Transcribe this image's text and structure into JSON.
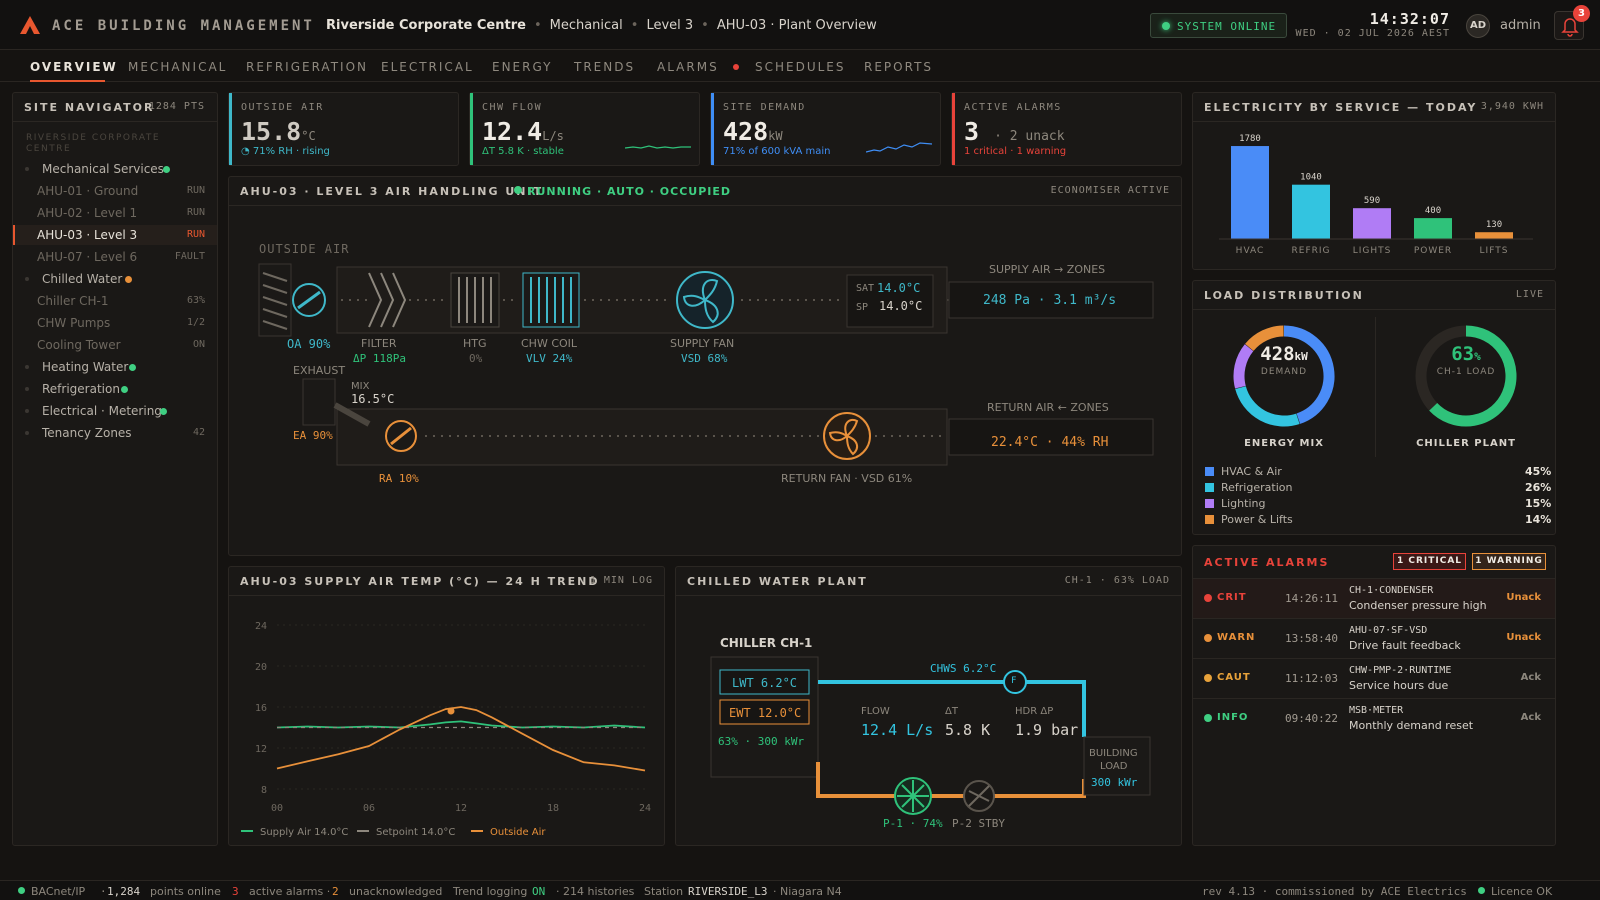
{
  "header": {
    "brand": "ACE BUILDING MANAGEMENT",
    "breadcrumb": [
      "Riverside Corporate Centre",
      "Mechanical",
      "Level 3",
      "AHU-03 · Plant Overview"
    ],
    "system_status": "SYSTEM ONLINE",
    "time": "14:32:07",
    "date": "WED · 02 JUL 2026 AEST",
    "avatar_initials": "AD",
    "username": "admin",
    "notification_count": "3",
    "accent_color": "#e8572f"
  },
  "tabs": [
    "OVERVIEW",
    "MECHANICAL",
    "REFRIGERATION",
    "ELECTRICAL",
    "ENERGY",
    "TRENDS",
    "ALARMS",
    "SCHEDULES",
    "REPORTS"
  ],
  "navigator": {
    "title": "SITE NAVIGATOR",
    "points": "1284 PTS",
    "site": "RIVERSIDE CORPORATE CENTRE",
    "items": [
      {
        "label": "Mechanical Services",
        "value": "",
        "status_color": "#3fcf82"
      },
      {
        "label": "AHU-01 · Ground",
        "value": "RUN"
      },
      {
        "label": "AHU-02 · Level 1",
        "value": "RUN"
      },
      {
        "label": "AHU-03 · Level 3",
        "value": "RUN"
      },
      {
        "label": "AHU-07 · Level 6",
        "value": "FAULT"
      },
      {
        "label": "Chilled Water",
        "value": "",
        "status_color": "#e8903a"
      },
      {
        "label": "Chiller CH-1",
        "value": "63%"
      },
      {
        "label": "CHW Pumps",
        "value": "1/2"
      },
      {
        "label": "Cooling Tower",
        "value": "ON"
      },
      {
        "label": "Heating Water",
        "value": "",
        "status_color": "#3fcf82"
      },
      {
        "label": "Refrigeration",
        "value": "",
        "status_color": "#3fcf82"
      },
      {
        "label": "Electrical · Metering",
        "value": "",
        "status_color": "#3fcf82"
      },
      {
        "label": "Tenancy Zones",
        "value": "42"
      }
    ]
  },
  "kpis": [
    {
      "label": "OUTSIDE AIR",
      "value": "15.8",
      "unit": "°C",
      "sub": "◔ 71% RH · rising",
      "color": "#3fb8c9"
    },
    {
      "label": "CHW FLOW",
      "value": "12.4",
      "unit": "L/s",
      "sub": "ΔT 5.8 K · stable",
      "color": "#2fc27a"
    },
    {
      "label": "SITE DEMAND",
      "value": "428",
      "unit": "kW",
      "sub": "71% of 600 kVA main",
      "color": "#3f8ef5"
    },
    {
      "label": "ACTIVE ALARMS",
      "value": "3",
      "unit": "· 2 unack",
      "sub": "1 critical · 1 warning",
      "color": "#e8433a"
    }
  ],
  "ahu": {
    "title": "AHU-03 · LEVEL 3 AIR HANDLING UNIT",
    "status": "RUNNING · AUTO · OCCUPIED",
    "mode": "ECONOMISER ACTIVE",
    "outside_air_label": "OUTSIDE AIR",
    "oa_damper": "OA 90%",
    "filter_label": "FILTER",
    "filter_dp": "ΔP 118Pa",
    "htg_label": "HTG",
    "htg_value": "0%",
    "chw_label": "CHW COIL",
    "chw_value": "VLV 24%",
    "supply_fan_label": "SUPPLY FAN",
    "supply_fan_value": "VSD 68%",
    "sat_label": "SAT",
    "sat_value": "14.0°C",
    "sp_label": "SP",
    "sp_value": "14.0°C",
    "supply_zones_label": "SUPPLY AIR → ZONES",
    "supply_zones_value": "248 Pa · 3.1 m³/s",
    "exhaust_label": "EXHAUST",
    "mix_label": "MIX",
    "mix_value": "16.5°C",
    "ea_damper": "EA 90%",
    "ra_damper": "RA 10%",
    "return_fan_label": "RETURN FAN · VSD 61%",
    "return_zones_label": "RETURN AIR ← ZONES",
    "return_zones_value": "22.4°C · 44% RH"
  },
  "trend": {
    "title": "AHU-03 SUPPLY AIR TEMP (°C) — 24 H TREND",
    "meta": "1 MIN LOG",
    "legend": [
      "Supply Air 14.0°C",
      "Setpoint 14.0°C",
      "Outside Air"
    ]
  },
  "chart_data": [
    {
      "type": "line",
      "title": "AHU-03 SUPPLY AIR TEMP (°C) — 24 H TREND",
      "xlabel": "",
      "ylabel": "",
      "x_ticks": [
        "00",
        "06",
        "12",
        "18",
        "24"
      ],
      "y_ticks": [
        24,
        20,
        16,
        12,
        8
      ],
      "ylim": [
        8,
        24
      ],
      "xlim": [
        0,
        24
      ],
      "grid": true,
      "legend_position": "bottom-left",
      "x": [
        0,
        2,
        4,
        6,
        8,
        10,
        11,
        12,
        13,
        14,
        16,
        18,
        20,
        22,
        24
      ],
      "series": [
        {
          "name": "Supply Air 14.0°C",
          "color": "#2fc27a",
          "values": [
            14.0,
            14.1,
            14.0,
            14.1,
            14.0,
            14.3,
            14.5,
            14.6,
            14.4,
            14.2,
            14.0,
            14.1,
            14.0,
            14.2,
            14.0
          ]
        },
        {
          "name": "Setpoint 14.0°C",
          "color": "#8d877d",
          "values": [
            14.0,
            14.0,
            14.0,
            14.0,
            14.0,
            14.0,
            14.0,
            14.0,
            14.0,
            14.0,
            14.0,
            14.0,
            14.0,
            14.0,
            14.0
          ]
        },
        {
          "name": "Outside Air",
          "color": "#e8903a",
          "values": [
            10.0,
            10.7,
            11.4,
            12.2,
            13.8,
            15.2,
            15.8,
            16.0,
            15.7,
            15.0,
            13.4,
            11.8,
            10.6,
            10.3,
            9.8
          ]
        }
      ]
    },
    {
      "type": "bar",
      "title": "ELECTRICITY BY SERVICE — TODAY",
      "total": "3,940 KWH",
      "categories": [
        "HVAC",
        "REFRIG",
        "LIGHTS",
        "POWER",
        "LIFTS"
      ],
      "values": [
        1780,
        1040,
        590,
        400,
        130
      ],
      "colors": [
        "#4a8cf7",
        "#33c4e0",
        "#b07cf5",
        "#2fc27a",
        "#e8903a"
      ],
      "ylim": [
        0,
        1800
      ]
    },
    {
      "type": "pie",
      "title": "ENERGY MIX",
      "categories": [
        "HVAC & Air",
        "Refrigeration",
        "Lighting",
        "Power & Lifts"
      ],
      "values": [
        45,
        26,
        15,
        14
      ],
      "colors": [
        "#4a8cf7",
        "#33c4e0",
        "#b07cf5",
        "#e8903a"
      ]
    }
  ],
  "electricity": {
    "title": "ELECTRICITY BY SERVICE — TODAY",
    "total": "3,940 KWH"
  },
  "load": {
    "title": "LOAD DISTRIBUTION",
    "meta": "LIVE",
    "demand_value": "428",
    "demand_unit": "kW",
    "demand_label": "DEMAND",
    "mix_label": "ENERGY MIX",
    "chiller_value": "63",
    "chiller_unit": "%",
    "chiller_sub": "CH-1 LOAD",
    "chiller_label": "CHILLER PLANT",
    "chiller_fraction": 0.63,
    "legend": [
      {
        "label": "HVAC & Air",
        "pct": "45%"
      },
      {
        "label": "Refrigeration",
        "pct": "26%"
      },
      {
        "label": "Lighting",
        "pct": "15%"
      },
      {
        "label": "Power & Lifts",
        "pct": "14%"
      }
    ]
  },
  "plant": {
    "title": "CHILLED WATER PLANT",
    "meta": "CH-1 · 63% LOAD",
    "chiller_label": "CHILLER CH-1",
    "lwt": "LWT 6.2°C",
    "ewt": "EWT 12.0°C",
    "chiller_load": "63% · 300 kWr",
    "chws": "CHWS 6.2°C",
    "flow_meter": "F",
    "flow_label": "FLOW",
    "flow_value": "12.4 L/s",
    "dt_label": "ΔT",
    "dt_value": "5.8 K",
    "hdr_label": "HDR ΔP",
    "hdr_value": "1.9 bar",
    "building_label_1": "BUILDING",
    "building_label_2": "LOAD",
    "building_value": "300 kWr",
    "p1": "P-1 · 74%",
    "p2": "P-2 STBY"
  },
  "alarms": {
    "title": "ACTIVE ALARMS",
    "badge_critical": "1 CRITICAL",
    "badge_warning": "1 WARNING",
    "rows": [
      {
        "sev": "CRIT",
        "color": "#e8433a",
        "time": "14:26:11",
        "code": "CH-1·CONDENSER",
        "msg": "Condenser pressure high",
        "state": "Unack"
      },
      {
        "sev": "WARN",
        "color": "#e8903a",
        "time": "13:58:40",
        "code": "AHU-07·SF-VSD",
        "msg": "Drive fault feedback",
        "state": "Unack"
      },
      {
        "sev": "CAUT",
        "color": "#e8a23a",
        "time": "11:12:03",
        "code": "CHW-PMP-2·RUNTIME",
        "msg": "Service hours due",
        "state": "Ack"
      },
      {
        "sev": "INFO",
        "color": "#3fcf82",
        "time": "09:40:22",
        "code": "MSB·METER",
        "msg": "Monthly demand reset",
        "state": "Ack"
      }
    ]
  },
  "footer": {
    "protocol": "BACnet/IP",
    "points": "1,284",
    "points_label": "points online",
    "alarms": "3",
    "alarms_label": "active alarms ·",
    "unack": "2",
    "unack_label": "unacknowledged",
    "trend_label": "Trend logging",
    "trend_state": "ON",
    "histories": "· 214 histories",
    "station_label": "Station",
    "station": "RIVERSIDE_L3",
    "platform": "· Niagara N4",
    "rev": "rev 4.13 · commissioned by ACE Electrics",
    "licence": "Licence OK"
  }
}
